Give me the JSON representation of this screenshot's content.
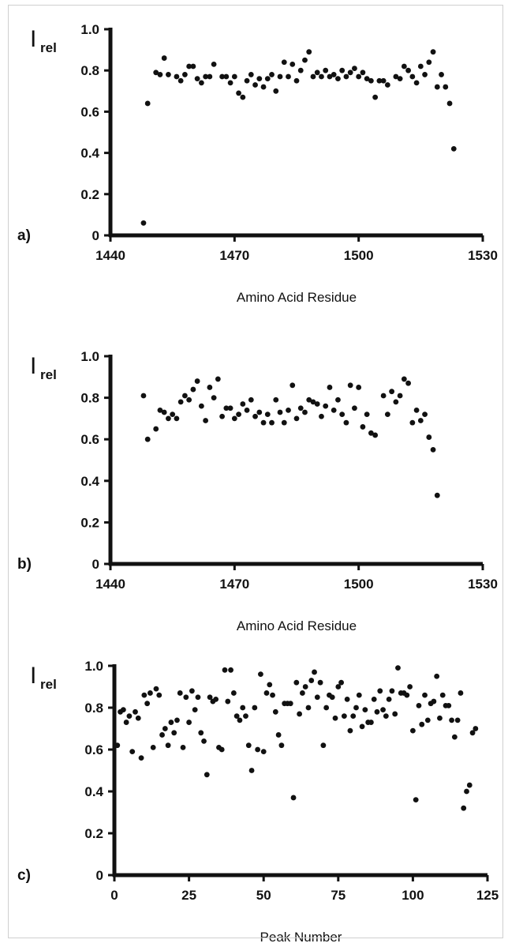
{
  "chart_data": [
    {
      "type": "scatter",
      "panel_label": "a)",
      "ylabel_main": "I",
      "ylabel_sub": "rel",
      "xlabel": "Amino Acid Residue",
      "xlim": [
        1440,
        1530
      ],
      "ylim": [
        0,
        1.0
      ],
      "x_ticks": [
        1440,
        1470,
        1500,
        1530
      ],
      "x_tick_labels": [
        "1440",
        "1470",
        "1500",
        "1530"
      ],
      "y_ticks": [
        0,
        0.2,
        0.4,
        0.6,
        0.8,
        1.0
      ],
      "y_tick_labels": [
        "0",
        "0.2",
        "0.4",
        "0.6",
        "0.8",
        "1.0"
      ],
      "grid": false,
      "marker_color": "#111111",
      "points": [
        [
          1448,
          0.06
        ],
        [
          1449,
          0.64
        ],
        [
          1451,
          0.79
        ],
        [
          1452,
          0.78
        ],
        [
          1453,
          0.86
        ],
        [
          1454,
          0.78
        ],
        [
          1456,
          0.77
        ],
        [
          1457,
          0.75
        ],
        [
          1458,
          0.78
        ],
        [
          1459,
          0.82
        ],
        [
          1460,
          0.82
        ],
        [
          1461,
          0.76
        ],
        [
          1462,
          0.74
        ],
        [
          1463,
          0.77
        ],
        [
          1464,
          0.77
        ],
        [
          1465,
          0.83
        ],
        [
          1467,
          0.77
        ],
        [
          1468,
          0.77
        ],
        [
          1469,
          0.74
        ],
        [
          1470,
          0.77
        ],
        [
          1471,
          0.69
        ],
        [
          1472,
          0.67
        ],
        [
          1473,
          0.75
        ],
        [
          1474,
          0.78
        ],
        [
          1475,
          0.73
        ],
        [
          1476,
          0.76
        ],
        [
          1477,
          0.72
        ],
        [
          1478,
          0.76
        ],
        [
          1479,
          0.78
        ],
        [
          1480,
          0.7
        ],
        [
          1481,
          0.77
        ],
        [
          1482,
          0.84
        ],
        [
          1483,
          0.77
        ],
        [
          1484,
          0.83
        ],
        [
          1485,
          0.75
        ],
        [
          1486,
          0.8
        ],
        [
          1487,
          0.85
        ],
        [
          1488,
          0.89
        ],
        [
          1489,
          0.77
        ],
        [
          1490,
          0.79
        ],
        [
          1491,
          0.77
        ],
        [
          1492,
          0.8
        ],
        [
          1493,
          0.77
        ],
        [
          1494,
          0.78
        ],
        [
          1495,
          0.76
        ],
        [
          1496,
          0.8
        ],
        [
          1497,
          0.77
        ],
        [
          1498,
          0.79
        ],
        [
          1499,
          0.81
        ],
        [
          1500,
          0.77
        ],
        [
          1501,
          0.79
        ],
        [
          1502,
          0.76
        ],
        [
          1503,
          0.75
        ],
        [
          1504,
          0.67
        ],
        [
          1505,
          0.75
        ],
        [
          1506,
          0.75
        ],
        [
          1507,
          0.73
        ],
        [
          1509,
          0.77
        ],
        [
          1510,
          0.76
        ],
        [
          1511,
          0.82
        ],
        [
          1512,
          0.8
        ],
        [
          1513,
          0.77
        ],
        [
          1514,
          0.74
        ],
        [
          1515,
          0.82
        ],
        [
          1516,
          0.78
        ],
        [
          1517,
          0.84
        ],
        [
          1518,
          0.89
        ],
        [
          1519,
          0.72
        ],
        [
          1520,
          0.78
        ],
        [
          1521,
          0.72
        ],
        [
          1522,
          0.64
        ],
        [
          1523,
          0.42
        ]
      ]
    },
    {
      "type": "scatter",
      "panel_label": "b)",
      "ylabel_main": "I",
      "ylabel_sub": "rel",
      "xlabel": "Amino Acid Residue",
      "xlim": [
        1440,
        1530
      ],
      "ylim": [
        0,
        1.0
      ],
      "x_ticks": [
        1440,
        1470,
        1500,
        1530
      ],
      "x_tick_labels": [
        "1440",
        "1470",
        "1500",
        "1530"
      ],
      "y_ticks": [
        0,
        0.2,
        0.4,
        0.6,
        0.8,
        1.0
      ],
      "y_tick_labels": [
        "0",
        "0.2",
        "0.4",
        "0.6",
        "0.8",
        "1.0"
      ],
      "grid": false,
      "marker_color": "#111111",
      "points": [
        [
          1448,
          0.81
        ],
        [
          1449,
          0.6
        ],
        [
          1451,
          0.65
        ],
        [
          1452,
          0.74
        ],
        [
          1453,
          0.73
        ],
        [
          1454,
          0.7
        ],
        [
          1455,
          0.72
        ],
        [
          1456,
          0.7
        ],
        [
          1457,
          0.78
        ],
        [
          1458,
          0.81
        ],
        [
          1459,
          0.79
        ],
        [
          1460,
          0.84
        ],
        [
          1461,
          0.88
        ],
        [
          1462,
          0.76
        ],
        [
          1463,
          0.69
        ],
        [
          1464,
          0.85
        ],
        [
          1465,
          0.8
        ],
        [
          1466,
          0.89
        ],
        [
          1467,
          0.71
        ],
        [
          1468,
          0.75
        ],
        [
          1469,
          0.75
        ],
        [
          1470,
          0.7
        ],
        [
          1471,
          0.72
        ],
        [
          1472,
          0.77
        ],
        [
          1473,
          0.74
        ],
        [
          1474,
          0.79
        ],
        [
          1475,
          0.71
        ],
        [
          1476,
          0.73
        ],
        [
          1477,
          0.68
        ],
        [
          1478,
          0.72
        ],
        [
          1479,
          0.68
        ],
        [
          1480,
          0.79
        ],
        [
          1481,
          0.73
        ],
        [
          1482,
          0.68
        ],
        [
          1483,
          0.74
        ],
        [
          1484,
          0.86
        ],
        [
          1485,
          0.7
        ],
        [
          1486,
          0.75
        ],
        [
          1487,
          0.73
        ],
        [
          1488,
          0.79
        ],
        [
          1489,
          0.78
        ],
        [
          1490,
          0.77
        ],
        [
          1491,
          0.71
        ],
        [
          1492,
          0.76
        ],
        [
          1493,
          0.85
        ],
        [
          1494,
          0.74
        ],
        [
          1495,
          0.79
        ],
        [
          1496,
          0.72
        ],
        [
          1497,
          0.68
        ],
        [
          1498,
          0.86
        ],
        [
          1499,
          0.75
        ],
        [
          1500,
          0.85
        ],
        [
          1501,
          0.66
        ],
        [
          1502,
          0.72
        ],
        [
          1503,
          0.63
        ],
        [
          1504,
          0.62
        ],
        [
          1506,
          0.81
        ],
        [
          1507,
          0.72
        ],
        [
          1508,
          0.83
        ],
        [
          1509,
          0.78
        ],
        [
          1510,
          0.81
        ],
        [
          1511,
          0.89
        ],
        [
          1512,
          0.87
        ],
        [
          1513,
          0.68
        ],
        [
          1514,
          0.74
        ],
        [
          1515,
          0.69
        ],
        [
          1516,
          0.72
        ],
        [
          1517,
          0.61
        ],
        [
          1518,
          0.55
        ],
        [
          1519,
          0.33
        ]
      ]
    },
    {
      "type": "scatter",
      "panel_label": "c)",
      "ylabel_main": "I",
      "ylabel_sub": "rel",
      "xlabel": "Peak Number",
      "xlim": [
        0,
        125
      ],
      "ylim": [
        0,
        1.0
      ],
      "x_ticks": [
        0,
        25,
        50,
        75,
        100,
        125
      ],
      "x_tick_labels": [
        "0",
        "25",
        "50",
        "75",
        "100",
        "125"
      ],
      "y_ticks": [
        0,
        0.2,
        0.4,
        0.6,
        0.8,
        1.0
      ],
      "y_tick_labels": [
        "0",
        "0.2",
        "0.4",
        "0.6",
        "0.8",
        "1.0"
      ],
      "grid": false,
      "marker_color": "#111111",
      "points": [
        [
          1,
          0.62
        ],
        [
          2,
          0.78
        ],
        [
          3,
          0.79
        ],
        [
          4,
          0.73
        ],
        [
          5,
          0.76
        ],
        [
          6,
          0.59
        ],
        [
          7,
          0.78
        ],
        [
          8,
          0.75
        ],
        [
          9,
          0.56
        ],
        [
          10,
          0.86
        ],
        [
          11,
          0.82
        ],
        [
          12,
          0.87
        ],
        [
          13,
          0.61
        ],
        [
          14,
          0.89
        ],
        [
          15,
          0.86
        ],
        [
          16,
          0.67
        ],
        [
          17,
          0.7
        ],
        [
          18,
          0.62
        ],
        [
          19,
          0.73
        ],
        [
          20,
          0.68
        ],
        [
          21,
          0.74
        ],
        [
          22,
          0.87
        ],
        [
          23,
          0.61
        ],
        [
          24,
          0.85
        ],
        [
          25,
          0.73
        ],
        [
          26,
          0.88
        ],
        [
          27,
          0.79
        ],
        [
          28,
          0.85
        ],
        [
          29,
          0.68
        ],
        [
          30,
          0.64
        ],
        [
          31,
          0.48
        ],
        [
          32,
          0.85
        ],
        [
          33,
          0.83
        ],
        [
          34,
          0.84
        ],
        [
          35,
          0.61
        ],
        [
          36,
          0.6
        ],
        [
          37,
          0.98
        ],
        [
          38,
          0.83
        ],
        [
          39,
          0.98
        ],
        [
          40,
          0.87
        ],
        [
          41,
          0.76
        ],
        [
          42,
          0.74
        ],
        [
          43,
          0.8
        ],
        [
          44,
          0.76
        ],
        [
          45,
          0.62
        ],
        [
          46,
          0.5
        ],
        [
          47,
          0.8
        ],
        [
          48,
          0.6
        ],
        [
          49,
          0.96
        ],
        [
          50,
          0.59
        ],
        [
          51,
          0.87
        ],
        [
          52,
          0.91
        ],
        [
          53,
          0.86
        ],
        [
          54,
          0.78
        ],
        [
          55,
          0.67
        ],
        [
          56,
          0.62
        ],
        [
          57,
          0.82
        ],
        [
          58,
          0.82
        ],
        [
          59,
          0.82
        ],
        [
          60,
          0.37
        ],
        [
          61,
          0.92
        ],
        [
          62,
          0.77
        ],
        [
          63,
          0.87
        ],
        [
          64,
          0.9
        ],
        [
          65,
          0.8
        ],
        [
          66,
          0.93
        ],
        [
          67,
          0.97
        ],
        [
          68,
          0.85
        ],
        [
          69,
          0.92
        ],
        [
          70,
          0.62
        ],
        [
          71,
          0.8
        ],
        [
          72,
          0.86
        ],
        [
          73,
          0.85
        ],
        [
          74,
          0.75
        ],
        [
          75,
          0.9
        ],
        [
          76,
          0.92
        ],
        [
          77,
          0.76
        ],
        [
          78,
          0.84
        ],
        [
          79,
          0.69
        ],
        [
          80,
          0.76
        ],
        [
          81,
          0.8
        ],
        [
          82,
          0.86
        ],
        [
          83,
          0.71
        ],
        [
          84,
          0.79
        ],
        [
          85,
          0.73
        ],
        [
          86,
          0.73
        ],
        [
          87,
          0.84
        ],
        [
          88,
          0.78
        ],
        [
          89,
          0.88
        ],
        [
          90,
          0.79
        ],
        [
          91,
          0.76
        ],
        [
          92,
          0.84
        ],
        [
          93,
          0.88
        ],
        [
          94,
          0.77
        ],
        [
          95,
          0.99
        ],
        [
          96,
          0.87
        ],
        [
          97,
          0.87
        ],
        [
          98,
          0.86
        ],
        [
          99,
          0.9
        ],
        [
          100,
          0.69
        ],
        [
          101,
          0.36
        ],
        [
          102,
          0.81
        ],
        [
          103,
          0.72
        ],
        [
          104,
          0.86
        ],
        [
          105,
          0.74
        ],
        [
          106,
          0.82
        ],
        [
          107,
          0.83
        ],
        [
          108,
          0.95
        ],
        [
          109,
          0.75
        ],
        [
          110,
          0.86
        ],
        [
          111,
          0.81
        ],
        [
          112,
          0.81
        ],
        [
          113,
          0.74
        ],
        [
          114,
          0.66
        ],
        [
          115,
          0.74
        ],
        [
          116,
          0.87
        ],
        [
          117,
          0.32
        ],
        [
          118,
          0.4
        ],
        [
          119,
          0.43
        ],
        [
          120,
          0.68
        ],
        [
          121,
          0.7
        ]
      ]
    }
  ]
}
